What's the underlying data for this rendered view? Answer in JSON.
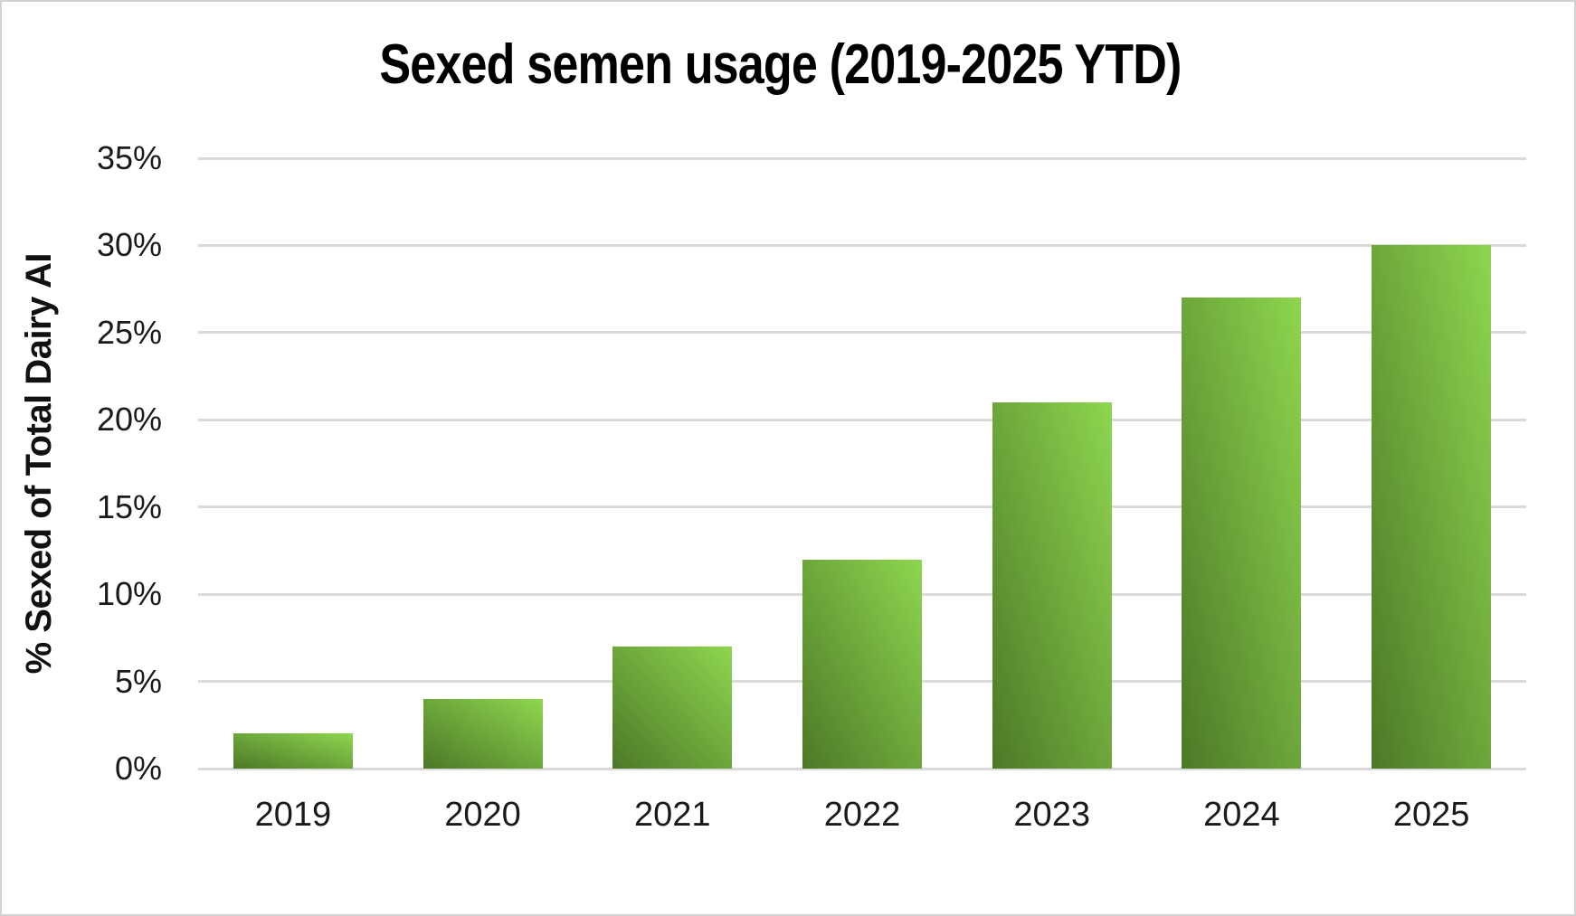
{
  "chart_data": {
    "type": "bar",
    "title": "Sexed semen usage (2019-2025 YTD)",
    "ylabel": "% Sexed of Total Dairy AI",
    "xlabel": "",
    "categories": [
      "2019",
      "2020",
      "2021",
      "2022",
      "2023",
      "2024",
      "2025"
    ],
    "values": [
      2,
      4,
      7,
      12,
      21,
      27,
      30
    ],
    "unit": "%",
    "ylim": [
      0,
      35
    ],
    "y_tick_step": 5,
    "y_tick_labels": [
      "0%",
      "5%",
      "10%",
      "15%",
      "20%",
      "25%",
      "30%",
      "35%"
    ],
    "grid": true,
    "legend": false,
    "colors": {
      "bar_gradient_dark": "#4c7827",
      "bar_gradient_light": "#8ed64f",
      "gridline": "#dadada",
      "axis_text": "#1a1a1a",
      "title_text": "#000000",
      "background": "#ffffff",
      "frame_border": "#d2d2d2"
    }
  }
}
